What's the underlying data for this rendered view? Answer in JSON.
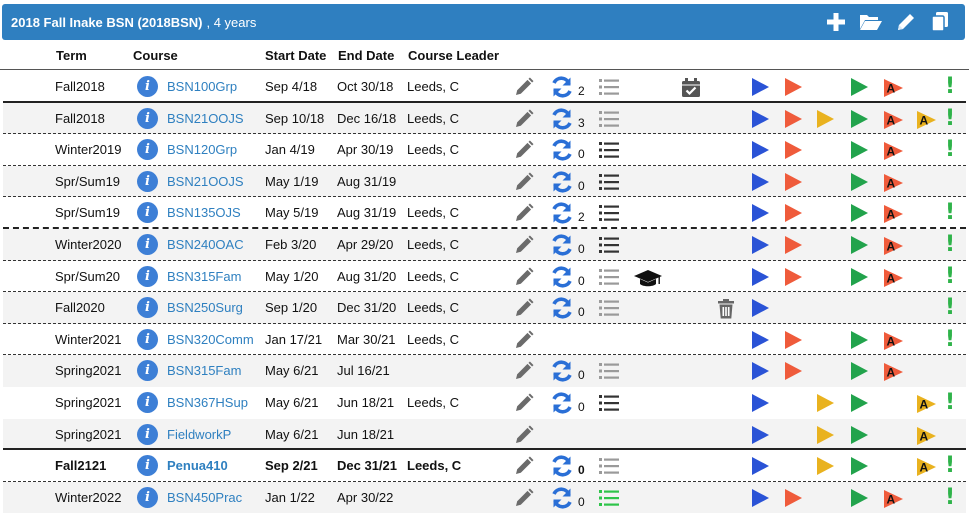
{
  "program": {
    "title": "2018 Fall Inake BSN (2018BSN)",
    "subtitle": ", 4 years"
  },
  "toolbar": {
    "icons": [
      "plus-icon",
      "folder-open-icon",
      "pencil-icon",
      "copy-icon"
    ]
  },
  "columns": {
    "term": "Term",
    "course": "Course",
    "start": "Start Date",
    "end": "End Date",
    "leader": "Course Leader"
  },
  "colors": {
    "header_bg": "#2f7fc0",
    "link": "#2f80c0",
    "info": "#3d7fd6",
    "sync": "#2a6fd6",
    "play_blue": "#2a53d6",
    "play_red": "#ef5b3b",
    "play_yellow": "#e9b21f",
    "play_green": "#22a34c",
    "alert_green": "#2fb34a"
  },
  "rows": [
    {
      "term": "Fall2018",
      "course": "BSN100Grp",
      "start": "Sep 4/18",
      "end": "Oct 30/18",
      "leader": "Leeds, C",
      "sync": true,
      "count": "2",
      "list": "gray",
      "extra": "calendar-check-icon",
      "trash": false,
      "blue": true,
      "red": true,
      "yellow": false,
      "green": true,
      "red_a": true,
      "yellow_a": false,
      "alert": true,
      "alt": false,
      "border": "solid",
      "bold": false
    },
    {
      "term": "Fall2018",
      "course": "BSN21OOJS",
      "start": "Sep 10/18",
      "end": "Dec 16/18",
      "leader": "Leeds, C",
      "sync": true,
      "count": "3",
      "list": "gray",
      "extra": "",
      "trash": false,
      "blue": true,
      "red": true,
      "yellow": true,
      "green": true,
      "red_a": true,
      "yellow_a": true,
      "alert": true,
      "alt": true,
      "border": "dashed",
      "bold": false
    },
    {
      "term": "Winter2019",
      "course": "BSN120Grp",
      "start": "Jan 4/19",
      "end": "Apr 30/19",
      "leader": "Leeds, C",
      "sync": true,
      "count": "0",
      "list": "dark",
      "extra": "",
      "trash": false,
      "blue": true,
      "red": true,
      "yellow": false,
      "green": true,
      "red_a": true,
      "yellow_a": false,
      "alert": true,
      "alt": false,
      "border": "dashed",
      "bold": false
    },
    {
      "term": "Spr/Sum19",
      "course": "BSN21OOJS",
      "start": "May 1/19",
      "end": "Aug 31/19",
      "leader": "",
      "sync": true,
      "count": "0",
      "list": "dark",
      "extra": "",
      "trash": false,
      "blue": true,
      "red": true,
      "yellow": false,
      "green": true,
      "red_a": true,
      "yellow_a": false,
      "alert": false,
      "alt": true,
      "border": "dashed",
      "bold": false
    },
    {
      "term": "Spr/Sum19",
      "course": "BSN135OJS",
      "start": "May 5/19",
      "end": "Aug 31/19",
      "leader": "Leeds, C",
      "sync": true,
      "count": "2",
      "list": "dark",
      "extra": "",
      "trash": false,
      "blue": true,
      "red": true,
      "yellow": false,
      "green": true,
      "red_a": true,
      "yellow_a": false,
      "alert": true,
      "alt": false,
      "border": "heavydash",
      "bold": false
    },
    {
      "term": "Winter2020",
      "course": "BSN240OAC",
      "start": "Feb 3/20",
      "end": "Apr 29/20",
      "leader": "Leeds, C",
      "sync": true,
      "count": "0",
      "list": "dark",
      "extra": "",
      "trash": false,
      "blue": true,
      "red": true,
      "yellow": false,
      "green": true,
      "red_a": true,
      "yellow_a": false,
      "alert": true,
      "alt": true,
      "border": "dashed",
      "bold": false
    },
    {
      "term": "Spr/Sum20",
      "course": "BSN315Fam",
      "start": "May 1/20",
      "end": "Aug 31/20",
      "leader": "Leeds, C",
      "sync": true,
      "count": "0",
      "list": "gray",
      "extra": "graduation-cap-icon",
      "trash": false,
      "blue": true,
      "red": true,
      "yellow": false,
      "green": true,
      "red_a": true,
      "yellow_a": false,
      "alert": true,
      "alt": false,
      "border": "dashed",
      "bold": false
    },
    {
      "term": "Fall2020",
      "course": "BSN250Surg",
      "start": "Sep 1/20",
      "end": "Dec 31/20",
      "leader": "Leeds, C",
      "sync": true,
      "count": "0",
      "list": "gray",
      "extra": "",
      "trash": true,
      "blue": true,
      "red": false,
      "yellow": false,
      "green": false,
      "red_a": false,
      "yellow_a": false,
      "alert": true,
      "alt": true,
      "border": "dashed",
      "bold": false
    },
    {
      "term": "Winter2021",
      "course": "BSN320Comm",
      "start": "Jan 17/21",
      "end": "Mar 30/21",
      "leader": "Leeds, C",
      "sync": false,
      "count": "",
      "list": "",
      "extra": "",
      "trash": false,
      "blue": true,
      "red": true,
      "yellow": false,
      "green": true,
      "red_a": true,
      "yellow_a": false,
      "alert": true,
      "alt": false,
      "border": "dashed",
      "bold": false
    },
    {
      "term": "Spring2021",
      "course": "BSN315Fam",
      "start": "May 6/21",
      "end": "Jul 16/21",
      "leader": "",
      "sync": true,
      "count": "0",
      "list": "gray",
      "extra": "",
      "trash": false,
      "blue": true,
      "red": true,
      "yellow": false,
      "green": true,
      "red_a": true,
      "yellow_a": false,
      "alert": false,
      "alt": true,
      "border": "none",
      "bold": false
    },
    {
      "term": "Spring2021",
      "course": "BSN367HSup",
      "start": "May 6/21",
      "end": "Jun 18/21",
      "leader": "Leeds, C",
      "sync": true,
      "count": "0",
      "list": "dark",
      "extra": "",
      "trash": false,
      "blue": true,
      "red": false,
      "yellow": true,
      "green": true,
      "red_a": false,
      "yellow_a": true,
      "alert": true,
      "alt": false,
      "border": "none",
      "bold": false
    },
    {
      "term": "Spring2021",
      "course": "FieldworkP",
      "start": "May 6/21",
      "end": "Jun 18/21",
      "leader": "",
      "sync": false,
      "count": "",
      "list": "",
      "extra": "",
      "trash": false,
      "blue": true,
      "red": false,
      "yellow": true,
      "green": true,
      "red_a": false,
      "yellow_a": true,
      "alert": false,
      "alt": true,
      "border": "solid",
      "bold": false
    },
    {
      "term": "Fall2121",
      "course": "Penua410",
      "start": "Sep 2/21",
      "end": "Dec 31/21",
      "leader": "Leeds, C",
      "sync": true,
      "count": "0",
      "list": "gray",
      "extra": "",
      "trash": false,
      "blue": true,
      "red": false,
      "yellow": true,
      "green": true,
      "red_a": false,
      "yellow_a": true,
      "alert": true,
      "alt": false,
      "border": "dashed",
      "bold": true
    },
    {
      "term": "Winter2022",
      "course": "BSN450Prac",
      "start": "Jan 1/22",
      "end": "Apr 30/22",
      "leader": "",
      "sync": true,
      "count": "0",
      "list": "green",
      "extra": "",
      "trash": false,
      "blue": true,
      "red": true,
      "yellow": false,
      "green": true,
      "red_a": true,
      "yellow_a": false,
      "alert": true,
      "alt": true,
      "border": "none",
      "bold": false
    }
  ]
}
